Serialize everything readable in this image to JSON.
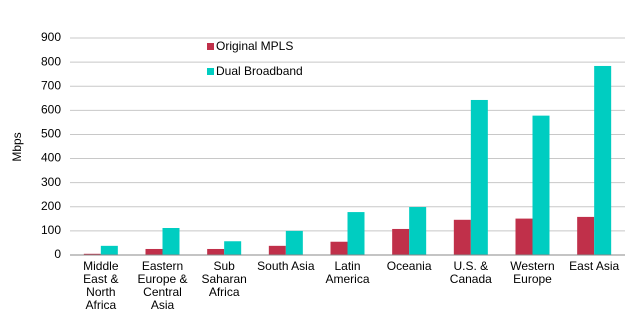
{
  "chart_data": {
    "type": "bar",
    "y_label": "Mbps",
    "categories": [
      "Middle East & North Africa",
      "Eastern Europe & Central Asia",
      "Sub Saharan Africa",
      "South Asia",
      "Latin America",
      "Oceania",
      "U.S. & Canada",
      "Western Europe",
      "East Asia"
    ],
    "series": [
      {
        "name": "Original MPLS",
        "color": "#c0304a",
        "values": [
          5,
          25,
          25,
          38,
          55,
          108,
          146,
          151,
          158
        ]
      },
      {
        "name": "Dual Broadband",
        "color": "#00cdc1",
        "values": [
          38,
          112,
          57,
          100,
          178,
          199,
          643,
          578,
          784
        ]
      }
    ],
    "ylim": [
      0,
      900
    ],
    "yticks": [
      0,
      100,
      200,
      300,
      400,
      500,
      600,
      700,
      800,
      900
    ],
    "grid": true
  }
}
